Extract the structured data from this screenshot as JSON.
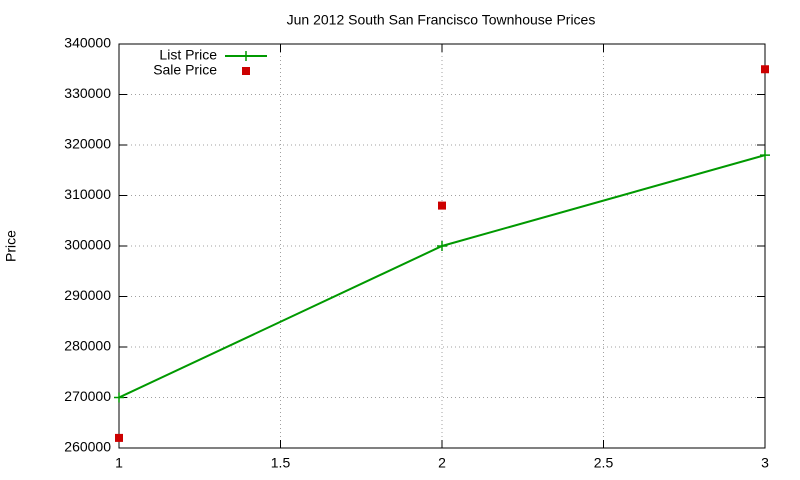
{
  "chart_data": {
    "type": "line",
    "title": "Jun 2012 South San Francisco Townhouse Prices",
    "y_label": "Price",
    "x": [
      1,
      2,
      3
    ],
    "series": [
      {
        "name": "List Price",
        "color": "#009900",
        "style": "linespoints",
        "values": [
          270000,
          300000,
          318000
        ]
      },
      {
        "name": "Sale Price",
        "color": "#cc0000",
        "style": "points",
        "values": [
          262000,
          308000,
          335000
        ]
      }
    ],
    "xlim": [
      1,
      3
    ],
    "xticks": [
      1,
      1.5,
      2,
      2.5,
      3
    ],
    "ylim": [
      260000,
      340000
    ],
    "yticks": [
      260000,
      270000,
      280000,
      290000,
      300000,
      310000,
      320000,
      330000,
      340000
    ],
    "grid": true,
    "legend": "top-left"
  }
}
